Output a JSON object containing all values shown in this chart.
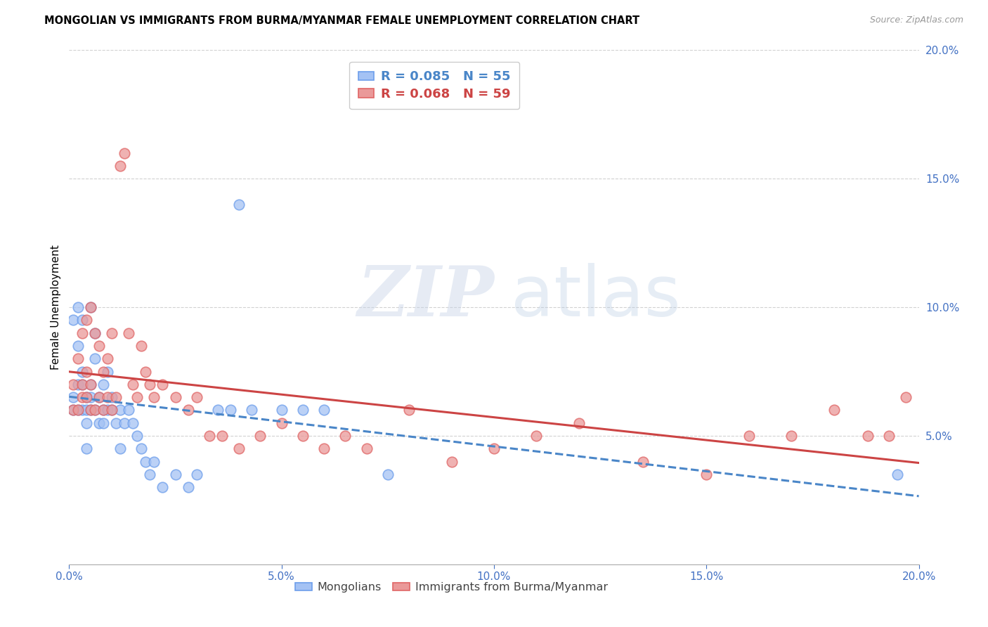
{
  "title": "MONGOLIAN VS IMMIGRANTS FROM BURMA/MYANMAR FEMALE UNEMPLOYMENT CORRELATION CHART",
  "source": "Source: ZipAtlas.com",
  "ylabel": "Female Unemployment",
  "xmin": 0.0,
  "xmax": 0.2,
  "ymin": 0.0,
  "ymax": 0.2,
  "xticks": [
    0.0,
    0.05,
    0.1,
    0.15,
    0.2
  ],
  "yticks": [
    0.05,
    0.1,
    0.15,
    0.2
  ],
  "ytick_labels": [
    "5.0%",
    "10.0%",
    "15.0%",
    "20.0%"
  ],
  "xtick_labels": [
    "0.0%",
    "5.0%",
    "10.0%",
    "15.0%",
    "20.0%"
  ],
  "legend_r1": "0.085",
  "legend_n1": "55",
  "legend_r2": "0.068",
  "legend_n2": "59",
  "color_mongolian_fill": "#a4c2f4",
  "color_mongolian_edge": "#6d9eeb",
  "color_burma_fill": "#ea9999",
  "color_burma_edge": "#e06666",
  "color_line_mongolian": "#4a86c8",
  "color_line_burma": "#cc4444",
  "mongolian_x": [
    0.001,
    0.001,
    0.001,
    0.002,
    0.002,
    0.002,
    0.002,
    0.003,
    0.003,
    0.003,
    0.003,
    0.004,
    0.004,
    0.004,
    0.004,
    0.005,
    0.005,
    0.005,
    0.005,
    0.006,
    0.006,
    0.006,
    0.007,
    0.007,
    0.008,
    0.008,
    0.008,
    0.009,
    0.009,
    0.01,
    0.01,
    0.011,
    0.012,
    0.012,
    0.013,
    0.014,
    0.015,
    0.016,
    0.017,
    0.018,
    0.019,
    0.02,
    0.022,
    0.025,
    0.028,
    0.03,
    0.035,
    0.038,
    0.04,
    0.043,
    0.05,
    0.055,
    0.06,
    0.075,
    0.195
  ],
  "mongolian_y": [
    0.06,
    0.065,
    0.095,
    0.06,
    0.07,
    0.085,
    0.1,
    0.06,
    0.07,
    0.075,
    0.095,
    0.06,
    0.065,
    0.055,
    0.045,
    0.06,
    0.065,
    0.07,
    0.1,
    0.06,
    0.08,
    0.09,
    0.055,
    0.065,
    0.06,
    0.055,
    0.07,
    0.06,
    0.075,
    0.06,
    0.065,
    0.055,
    0.045,
    0.06,
    0.055,
    0.06,
    0.055,
    0.05,
    0.045,
    0.04,
    0.035,
    0.04,
    0.03,
    0.035,
    0.03,
    0.035,
    0.06,
    0.06,
    0.14,
    0.06,
    0.06,
    0.06,
    0.06,
    0.035,
    0.035
  ],
  "burma_x": [
    0.001,
    0.001,
    0.002,
    0.002,
    0.003,
    0.003,
    0.003,
    0.004,
    0.004,
    0.004,
    0.005,
    0.005,
    0.005,
    0.006,
    0.006,
    0.007,
    0.007,
    0.008,
    0.008,
    0.009,
    0.009,
    0.01,
    0.01,
    0.011,
    0.012,
    0.013,
    0.014,
    0.015,
    0.016,
    0.017,
    0.018,
    0.019,
    0.02,
    0.022,
    0.025,
    0.028,
    0.03,
    0.033,
    0.036,
    0.04,
    0.045,
    0.05,
    0.055,
    0.06,
    0.065,
    0.07,
    0.08,
    0.09,
    0.1,
    0.11,
    0.12,
    0.135,
    0.15,
    0.16,
    0.17,
    0.18,
    0.188,
    0.193,
    0.197
  ],
  "burma_y": [
    0.06,
    0.07,
    0.06,
    0.08,
    0.065,
    0.07,
    0.09,
    0.065,
    0.075,
    0.095,
    0.06,
    0.07,
    0.1,
    0.06,
    0.09,
    0.065,
    0.085,
    0.06,
    0.075,
    0.065,
    0.08,
    0.06,
    0.09,
    0.065,
    0.155,
    0.16,
    0.09,
    0.07,
    0.065,
    0.085,
    0.075,
    0.07,
    0.065,
    0.07,
    0.065,
    0.06,
    0.065,
    0.05,
    0.05,
    0.045,
    0.05,
    0.055,
    0.05,
    0.045,
    0.05,
    0.045,
    0.06,
    0.04,
    0.045,
    0.05,
    0.055,
    0.04,
    0.035,
    0.05,
    0.05,
    0.06,
    0.05,
    0.05,
    0.065
  ]
}
